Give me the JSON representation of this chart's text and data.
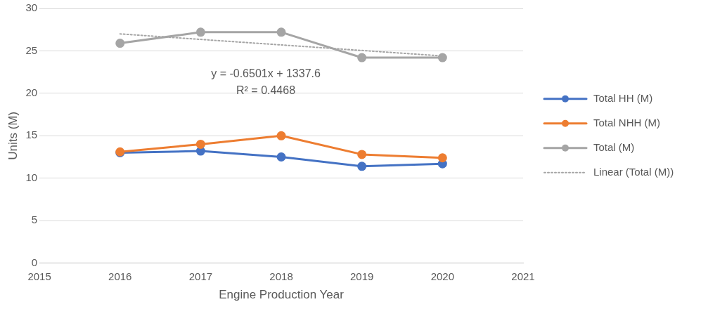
{
  "chart_data": {
    "type": "line",
    "xlabel": "Engine Production Year",
    "ylabel": "Units (M)",
    "x": [
      2016,
      2017,
      2018,
      2019,
      2020
    ],
    "series": [
      {
        "name": "Total HH (M)",
        "color": "#4472c4",
        "values": [
          13.0,
          13.2,
          12.5,
          11.4,
          11.7
        ]
      },
      {
        "name": "Total NHH (M)",
        "color": "#ed7d31",
        "values": [
          13.1,
          14.0,
          15.0,
          12.8,
          12.4
        ]
      },
      {
        "name": "Total (M)",
        "color": "#a5a5a5",
        "values": [
          25.9,
          27.2,
          27.2,
          24.2,
          24.2
        ]
      },
      {
        "name": "Linear (Total (M))",
        "color": "#a5a5a5",
        "x": [
          2016,
          2020
        ],
        "values": [
          27.0,
          24.4
        ],
        "line_style": "dotted",
        "marker": "none"
      }
    ],
    "xlim": [
      2015,
      2021
    ],
    "xticks": [
      2015,
      2016,
      2017,
      2018,
      2019,
      2020,
      2021
    ],
    "ylim": [
      0,
      30
    ],
    "yticks": [
      0,
      5,
      10,
      15,
      20,
      25,
      30
    ],
    "grid": "y",
    "legend": "right",
    "marker": "circle",
    "line_style": "solid",
    "annotations": [
      "y = -0.6501x + 1337.6",
      "R² = 0.4468"
    ]
  }
}
